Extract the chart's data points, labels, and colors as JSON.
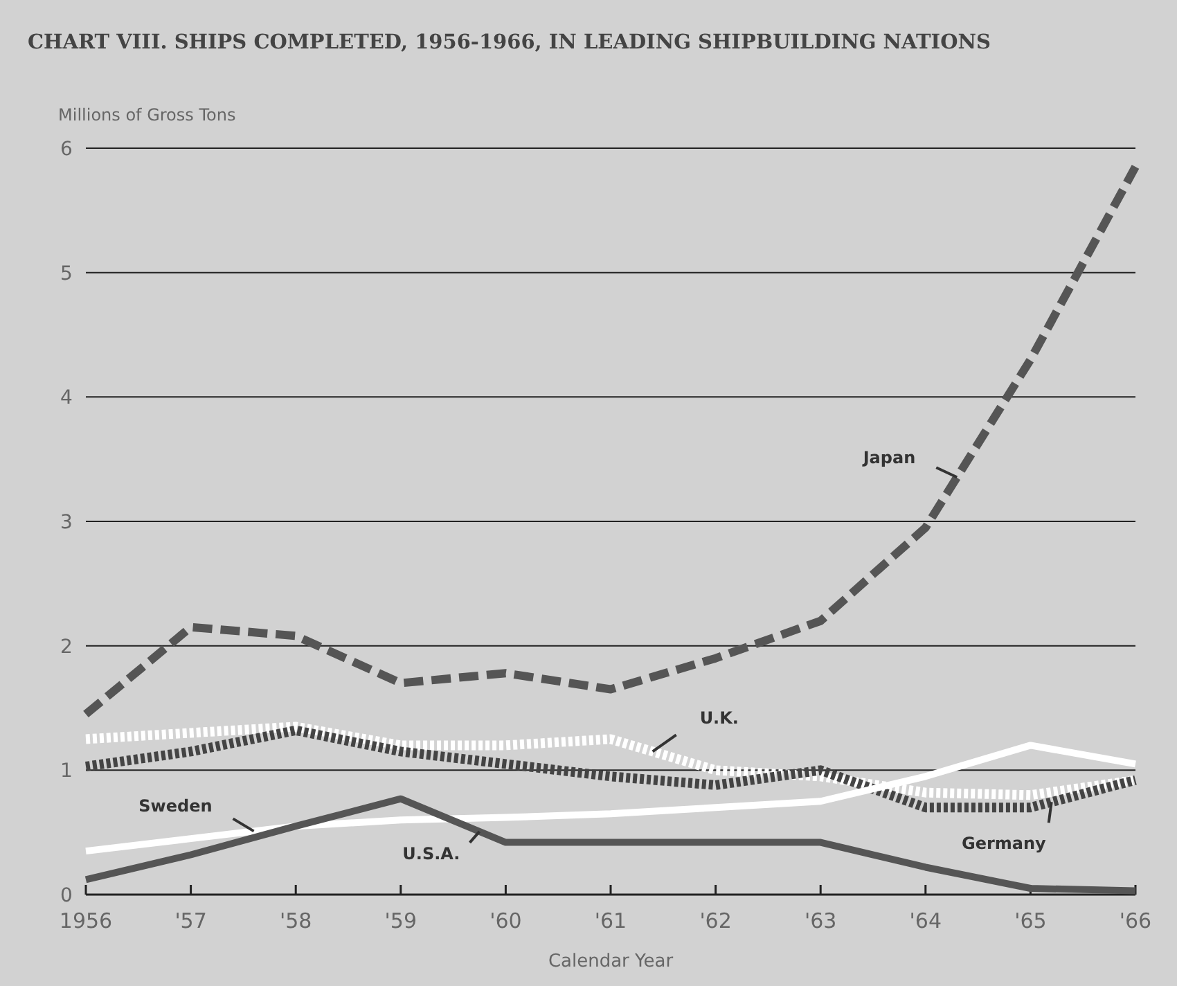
{
  "chart_data": {
    "type": "line",
    "title": "CHART VIII.  SHIPS COMPLETED, 1956-1966, IN LEADING SHIPBUILDING NATIONS",
    "ylabel": "Millions of Gross Tons",
    "xlabel": "Calendar Year",
    "x": [
      1956,
      1957,
      1958,
      1959,
      1960,
      1961,
      1962,
      1963,
      1964,
      1965,
      1966
    ],
    "xlim": [
      1956,
      1966
    ],
    "xticks": [
      1956,
      {
        "value": 1957,
        "label": "'57"
      },
      {
        "value": 1958,
        "label": "'58"
      },
      {
        "value": 1959,
        "label": "'59"
      },
      {
        "value": 1960,
        "label": "'60"
      },
      {
        "value": 1961,
        "label": "'61"
      },
      {
        "value": 1962,
        "label": "'62"
      },
      {
        "value": 1963,
        "label": "'63"
      },
      {
        "value": 1964,
        "label": "'64"
      },
      {
        "value": 1965,
        "label": "'65"
      },
      {
        "value": 1966,
        "label": "'66"
      }
    ],
    "ylim": [
      0,
      6
    ],
    "yticks": [
      0,
      1,
      2,
      3,
      4,
      5,
      6
    ],
    "grid": "y",
    "legend": false,
    "marker": "none",
    "series": [
      {
        "name": "Japan",
        "color": "#555555",
        "line_style": "dashed",
        "values": [
          1.45,
          2.15,
          2.08,
          1.7,
          1.78,
          1.65,
          1.9,
          2.2,
          2.95,
          4.3,
          5.85
        ]
      },
      {
        "name": "U.K.",
        "color": "#ffffff",
        "line_style": "dotted",
        "values": [
          1.25,
          1.3,
          1.35,
          1.2,
          1.2,
          1.25,
          1.0,
          0.95,
          0.82,
          0.8,
          0.92
        ]
      },
      {
        "name": "Germany",
        "color": "#444444",
        "line_style": "dotted",
        "values": [
          1.03,
          1.15,
          1.32,
          1.15,
          1.05,
          0.95,
          0.88,
          1.0,
          0.7,
          0.7,
          0.92
        ]
      },
      {
        "name": "Sweden",
        "color": "#ffffff",
        "line_style": "solid",
        "values": [
          0.35,
          0.45,
          0.55,
          0.6,
          0.62,
          0.65,
          0.7,
          0.75,
          0.95,
          1.2,
          1.05
        ]
      },
      {
        "name": "U.S.A.",
        "color": "#555555",
        "line_style": "solid",
        "values": [
          0.12,
          0.32,
          0.55,
          0.77,
          0.42,
          0.42,
          0.42,
          0.42,
          0.22,
          0.05,
          0.03
        ]
      }
    ]
  }
}
